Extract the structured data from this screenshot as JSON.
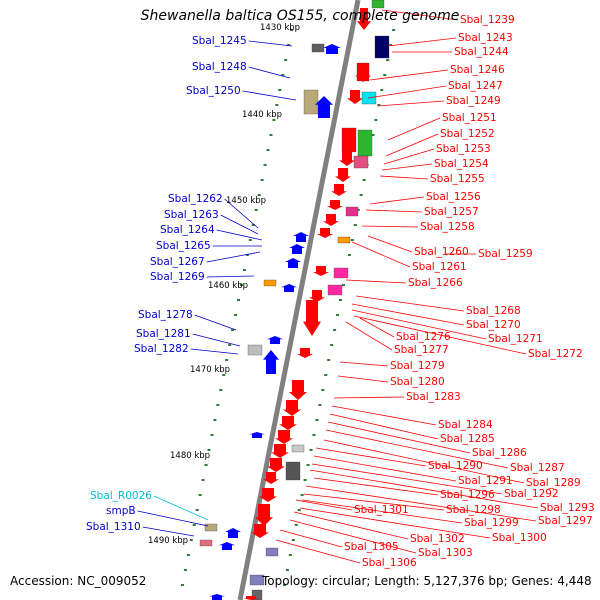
{
  "title": "Shewanella baltica OS155, complete genome",
  "accession": "Accession: NC_009052",
  "topology": "Topology: circular; Length: 5,127,376 bp; Genes: 4,448",
  "colors": {
    "forward_label": "#0000cc",
    "reverse_label": "#ff0000",
    "rna_label": "#00bcd4",
    "backbone": "#808080",
    "tick": "#2e7d32"
  },
  "kbp_labels": [
    "1430 kbp",
    "1440 kbp",
    "1450 kbp",
    "1460 kbp",
    "1470 kbp",
    "1480 kbp",
    "1490 kbp"
  ],
  "left_labels": [
    {
      "text": "Sbal_1245",
      "type": "gene"
    },
    {
      "text": "Sbal_1248",
      "type": "gene"
    },
    {
      "text": "Sbal_1250",
      "type": "gene"
    },
    {
      "text": "Sbal_1262",
      "type": "gene"
    },
    {
      "text": "Sbal_1263",
      "type": "gene"
    },
    {
      "text": "Sbal_1264",
      "type": "gene"
    },
    {
      "text": "Sbal_1265",
      "type": "gene"
    },
    {
      "text": "Sbal_1267",
      "type": "gene"
    },
    {
      "text": "Sbal_1269",
      "type": "gene"
    },
    {
      "text": "Sbal_1278",
      "type": "gene"
    },
    {
      "text": "Sbal_1281",
      "type": "gene"
    },
    {
      "text": "Sbal_1282",
      "type": "gene"
    },
    {
      "text": "Sbal_R0026",
      "type": "rna"
    },
    {
      "text": "smpB",
      "type": "gene"
    },
    {
      "text": "Sbal_1310",
      "type": "gene"
    }
  ],
  "right_labels": [
    "Sbal_1239",
    "Sbal_1243",
    "Sbal_1244",
    "Sbal_1246",
    "Sbal_1247",
    "Sbal_1249",
    "Sbal_1251",
    "Sbal_1252",
    "Sbal_1253",
    "Sbal_1254",
    "Sbal_1255",
    "Sbal_1256",
    "Sbal_1257",
    "Sbal_1258",
    "Sbal_1259",
    "Sbal_1260",
    "Sbal_1261",
    "Sbal_1266",
    "Sbal_1268",
    "Sbal_1270",
    "Sbal_1271",
    "Sbal_1272",
    "Sbal_1276",
    "Sbal_1277",
    "Sbal_1279",
    "Sbal_1280",
    "Sbal_1283",
    "Sbal_1284",
    "Sbal_1285",
    "Sbal_1286",
    "Sbal_1287",
    "Sbal_1289",
    "Sbal_1290",
    "Sbal_1291",
    "Sbal_1292",
    "Sbal_1293",
    "Sbal_1296",
    "Sbal_1297",
    "Sbal_1298",
    "Sbal_1299",
    "Sbal_1300",
    "Sbal_1301",
    "Sbal_1302",
    "Sbal_1303",
    "Sbal_1305",
    "Sbal_1306"
  ]
}
